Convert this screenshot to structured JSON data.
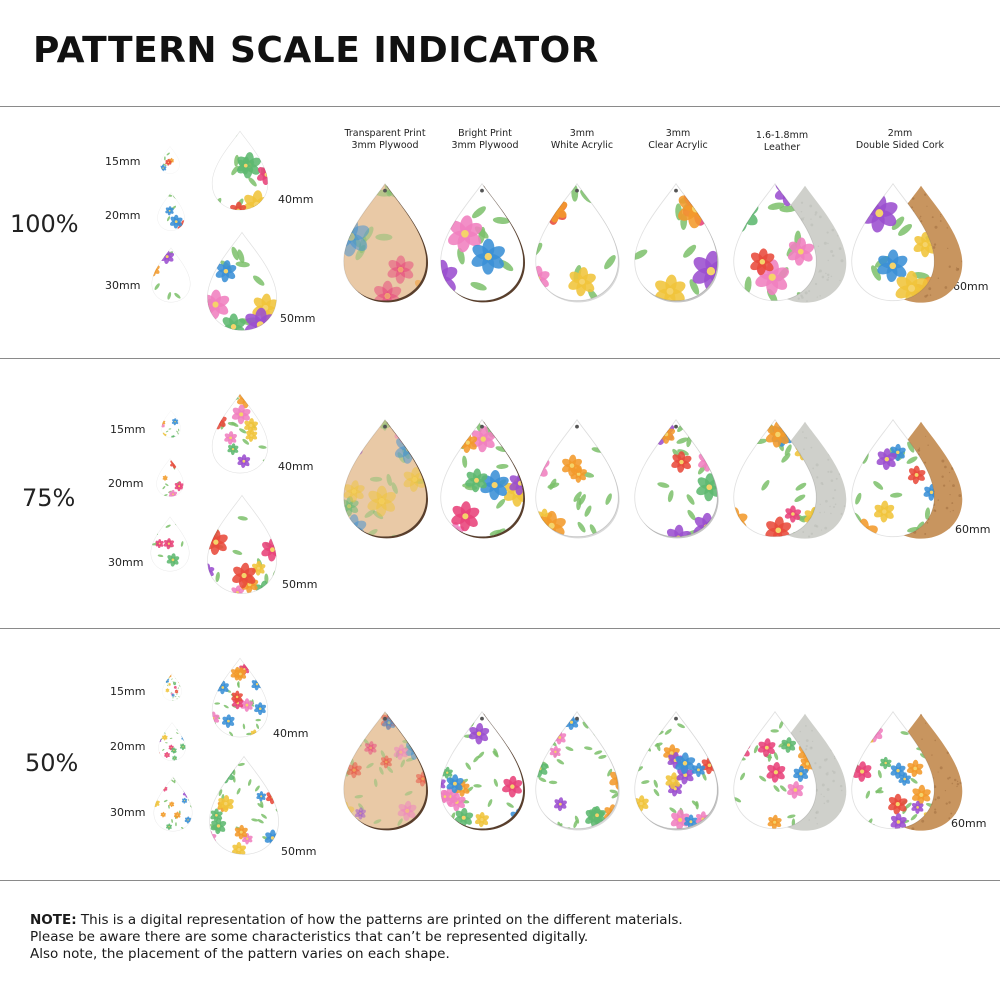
{
  "title": "PATTERN SCALE INDICATOR",
  "materials": [
    {
      "line1": "Transparent Print",
      "line2": "3mm Plywood"
    },
    {
      "line1": "Bright Print",
      "line2": "3mm Plywood"
    },
    {
      "line1": "3mm",
      "line2": "White Acrylic"
    },
    {
      "line1": "3mm",
      "line2": "Clear Acrylic"
    },
    {
      "line1": "1.6-1.8mm",
      "line2": "Leather"
    },
    {
      "line1": "2mm",
      "line2": "Double Sided Cork"
    }
  ],
  "sizes": {
    "s15": "15mm",
    "s20": "20mm",
    "s30": "30mm",
    "s40": "40mm",
    "s50": "50mm",
    "s60": "60mm"
  },
  "sections": [
    {
      "scale": "100%"
    },
    {
      "scale": "75%"
    },
    {
      "scale": "50%"
    }
  ],
  "note": {
    "label": "NOTE:",
    "line1": " This is a digital representation of how the patterns are printed on the different materials.",
    "line2": "Please be aware there are some characteristics that can’t be represented digitally.",
    "line3": "Also note, the placement of the pattern varies on each shape."
  },
  "colors": {
    "flower_palette": [
      "#e8427a",
      "#f39a2b",
      "#3a8fd6",
      "#9b4fcf",
      "#f0c43a",
      "#e84a3b",
      "#5db870",
      "#f07fbf"
    ],
    "leaf": "#7bbf6a",
    "plywood_edge": "#5a3f2c",
    "transparent_ply": "#e9c9a6",
    "suede": "#cfd0cb",
    "cork": "#c8955f",
    "white": "#ffffff"
  }
}
